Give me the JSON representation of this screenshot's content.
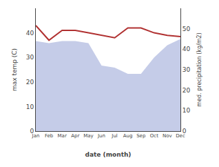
{
  "chart_data": {
    "type": "line",
    "categories": [
      "Jan",
      "Feb",
      "Mar",
      "Apr",
      "May",
      "Jun",
      "Jul",
      "Aug",
      "Sep",
      "Oct",
      "Nov",
      "Dec"
    ],
    "series": [
      {
        "type": "line",
        "color": "#b03030",
        "values": [
          43,
          37,
          41,
          41,
          40,
          39,
          38,
          42,
          42,
          40,
          39,
          38.5
        ]
      },
      {
        "type": "area",
        "color": "#c5cce8",
        "axis": "y2",
        "values": [
          44,
          43,
          44,
          44,
          43,
          32,
          31,
          28,
          28,
          36,
          42,
          45
        ]
      }
    ],
    "x_label": "date (month)",
    "y_label": "max temp (C)",
    "y2_label": "med. precipitation (kg/m2)",
    "ylim": [
      0,
      50
    ],
    "yticks": [
      0,
      10,
      20,
      30,
      40
    ],
    "y2lim": [
      0,
      60
    ],
    "y2ticks": [
      0,
      10,
      20,
      30,
      40,
      50
    ],
    "grid": false
  }
}
